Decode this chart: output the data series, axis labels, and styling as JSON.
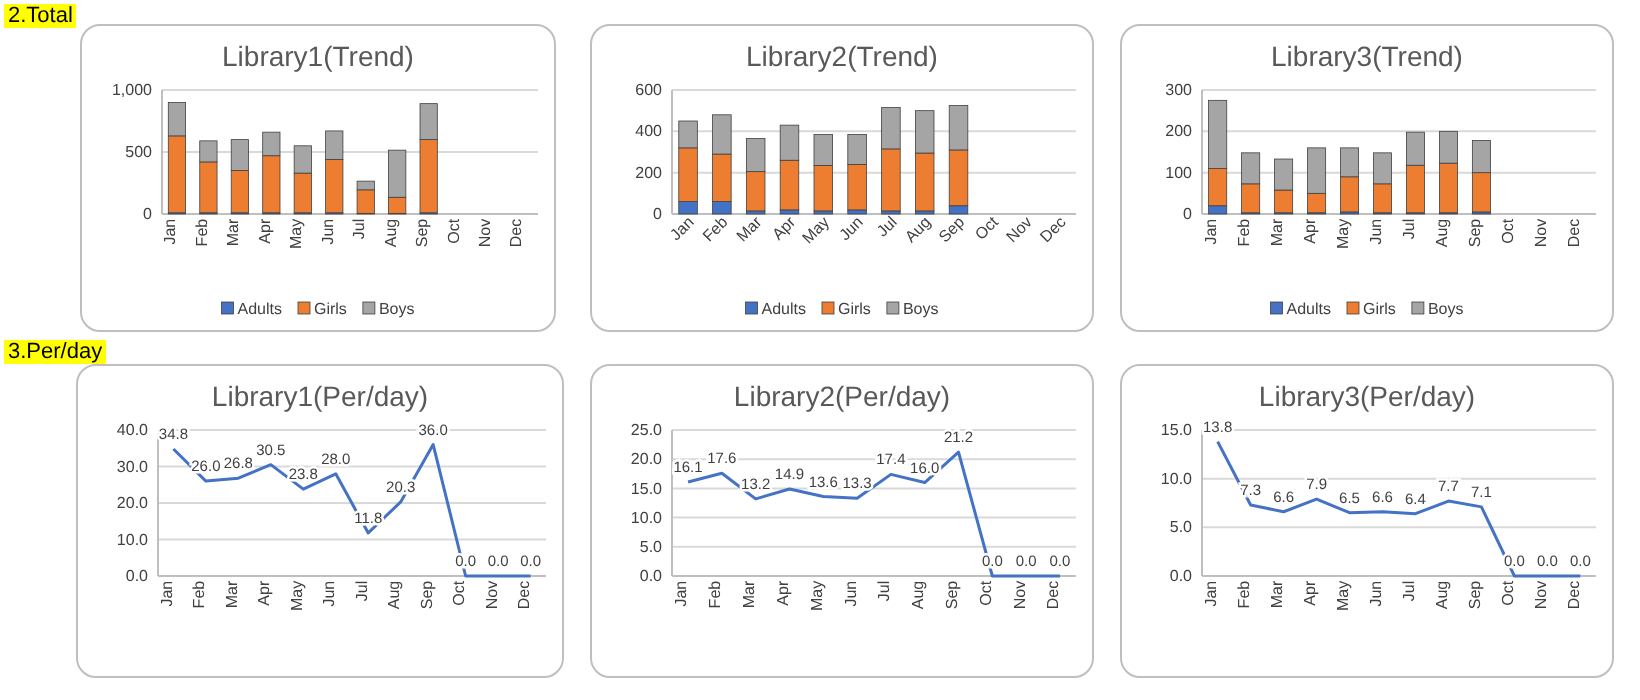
{
  "chart_data": [
    {
      "type": "bar",
      "title": "Library1(Trend)",
      "annotations": [
        "2.Total"
      ],
      "stacked": true,
      "legend": "bottom",
      "grid": "y",
      "categories": [
        "Jan",
        "Feb",
        "Mar",
        "Apr",
        "May",
        "Jun",
        "Jul",
        "Aug",
        "Sep",
        "Oct",
        "Nov",
        "Dec"
      ],
      "ylim": [
        0,
        1000
      ],
      "yticks": [
        0,
        500,
        {
          "value": 1000,
          "label": "1,000"
        }
      ],
      "series": [
        {
          "name": "Adults",
          "color": "#4472c4",
          "values": [
            10,
            10,
            10,
            10,
            10,
            10,
            5,
            5,
            10,
            null,
            null,
            null
          ]
        },
        {
          "name": "Girls",
          "color": "#ed7d31",
          "values": [
            620,
            410,
            340,
            460,
            320,
            430,
            190,
            130,
            590,
            null,
            null,
            null
          ]
        },
        {
          "name": "Boys",
          "color": "#a5a5a5",
          "values": [
            270,
            170,
            250,
            190,
            220,
            230,
            70,
            380,
            290,
            null,
            null,
            null
          ]
        }
      ]
    },
    {
      "type": "bar",
      "title": "Library2(Trend)",
      "stacked": true,
      "legend": "bottom",
      "grid": "y",
      "categories": [
        "Jan",
        "Feb",
        "Mar",
        "Apr",
        "May",
        "Jun",
        "Jul",
        "Aug",
        "Sep",
        "Oct",
        "Nov",
        "Dec"
      ],
      "ylim": [
        0,
        600
      ],
      "yticks": [
        0,
        200,
        400,
        600
      ],
      "series": [
        {
          "name": "Adults",
          "color": "#4472c4",
          "values": [
            60,
            60,
            15,
            20,
            15,
            20,
            15,
            15,
            40,
            null,
            null,
            null
          ]
        },
        {
          "name": "Girls",
          "color": "#ed7d31",
          "values": [
            260,
            230,
            190,
            240,
            220,
            220,
            300,
            280,
            270,
            null,
            null,
            null
          ]
        },
        {
          "name": "Boys",
          "color": "#a5a5a5",
          "values": [
            130,
            190,
            160,
            170,
            150,
            145,
            200,
            205,
            215,
            null,
            null,
            null
          ]
        }
      ]
    },
    {
      "type": "bar",
      "title": "Library3(Trend)",
      "stacked": true,
      "legend": "bottom",
      "grid": "y",
      "categories": [
        "Jan",
        "Feb",
        "Mar",
        "Apr",
        "May",
        "Jun",
        "Jul",
        "Aug",
        "Sep",
        "Oct",
        "Nov",
        "Dec"
      ],
      "ylim": [
        0,
        300
      ],
      "yticks": [
        0,
        100,
        200,
        300
      ],
      "series": [
        {
          "name": "Adults",
          "color": "#4472c4",
          "values": [
            20,
            3,
            3,
            3,
            5,
            3,
            3,
            3,
            5,
            null,
            null,
            null
          ]
        },
        {
          "name": "Girls",
          "color": "#ed7d31",
          "values": [
            90,
            70,
            55,
            47,
            85,
            70,
            115,
            120,
            95,
            null,
            null,
            null
          ]
        },
        {
          "name": "Boys",
          "color": "#a5a5a5",
          "values": [
            165,
            75,
            75,
            110,
            70,
            75,
            80,
            77,
            78,
            null,
            null,
            null
          ]
        }
      ]
    },
    {
      "type": "line",
      "title": "Library1(Per/day)",
      "annotations": [
        "3.Per/day"
      ],
      "grid": "y",
      "marker": "none",
      "line_style": "solid",
      "categories": [
        "Jan",
        "Feb",
        "Mar",
        "Apr",
        "May",
        "Jun",
        "Jul",
        "Aug",
        "Sep",
        "Oct",
        "Nov",
        "Dec"
      ],
      "ylim": [
        0,
        40
      ],
      "yticks": [
        {
          "value": 0,
          "label": "0.0"
        },
        {
          "value": 10,
          "label": "10.0"
        },
        {
          "value": 20,
          "label": "20.0"
        },
        {
          "value": 30,
          "label": "30.0"
        },
        {
          "value": 40,
          "label": "40.0"
        }
      ],
      "color": "#4472c4",
      "values": [
        34.8,
        26.0,
        26.8,
        30.5,
        23.8,
        28.0,
        11.8,
        20.3,
        36.0,
        0,
        0,
        0
      ],
      "value_labels": [
        "34.8",
        "26.0",
        "26.8",
        "30.5",
        "23.8",
        "28.0",
        "11.8",
        "20.3",
        "36.0",
        "0.0",
        "0.0",
        "0.0"
      ]
    },
    {
      "type": "line",
      "title": "Library2(Per/day)",
      "grid": "y",
      "marker": "none",
      "line_style": "solid",
      "categories": [
        "Jan",
        "Feb",
        "Mar",
        "Apr",
        "May",
        "Jun",
        "Jul",
        "Aug",
        "Sep",
        "Oct",
        "Nov",
        "Dec"
      ],
      "ylim": [
        0,
        25
      ],
      "yticks": [
        {
          "value": 0,
          "label": "0.0"
        },
        {
          "value": 5,
          "label": "5.0"
        },
        {
          "value": 10,
          "label": "10.0"
        },
        {
          "value": 15,
          "label": "15.0"
        },
        {
          "value": 20,
          "label": "20.0"
        },
        {
          "value": 25,
          "label": "25.0"
        }
      ],
      "color": "#4472c4",
      "values": [
        16.1,
        17.6,
        13.2,
        14.9,
        13.6,
        13.3,
        17.4,
        16.0,
        21.2,
        0,
        0,
        0
      ],
      "value_labels": [
        "16.1",
        "17.6",
        "13.2",
        "14.9",
        "13.6",
        "13.3",
        "17.4",
        "16.0",
        "21.2",
        "0.0",
        "0.0",
        "0.0"
      ]
    },
    {
      "type": "line",
      "title": "Library3(Per/day)",
      "grid": "y",
      "marker": "none",
      "line_style": "solid",
      "categories": [
        "Jan",
        "Feb",
        "Mar",
        "Apr",
        "May",
        "Jun",
        "Jul",
        "Aug",
        "Sep",
        "Oct",
        "Nov",
        "Dec"
      ],
      "ylim": [
        0,
        15
      ],
      "yticks": [
        {
          "value": 0,
          "label": "0.0"
        },
        {
          "value": 5,
          "label": "5.0"
        },
        {
          "value": 10,
          "label": "10.0"
        },
        {
          "value": 15,
          "label": "15.0"
        }
      ],
      "color": "#4472c4",
      "values": [
        13.8,
        7.3,
        6.6,
        7.9,
        6.5,
        6.6,
        6.4,
        7.7,
        7.1,
        0,
        0,
        0
      ],
      "value_labels": [
        "13.8",
        "7.3",
        "6.6",
        "7.9",
        "6.5",
        "6.6",
        "6.4",
        "7.7",
        "7.1",
        "0.0",
        "0.0",
        "0.0"
      ]
    }
  ]
}
